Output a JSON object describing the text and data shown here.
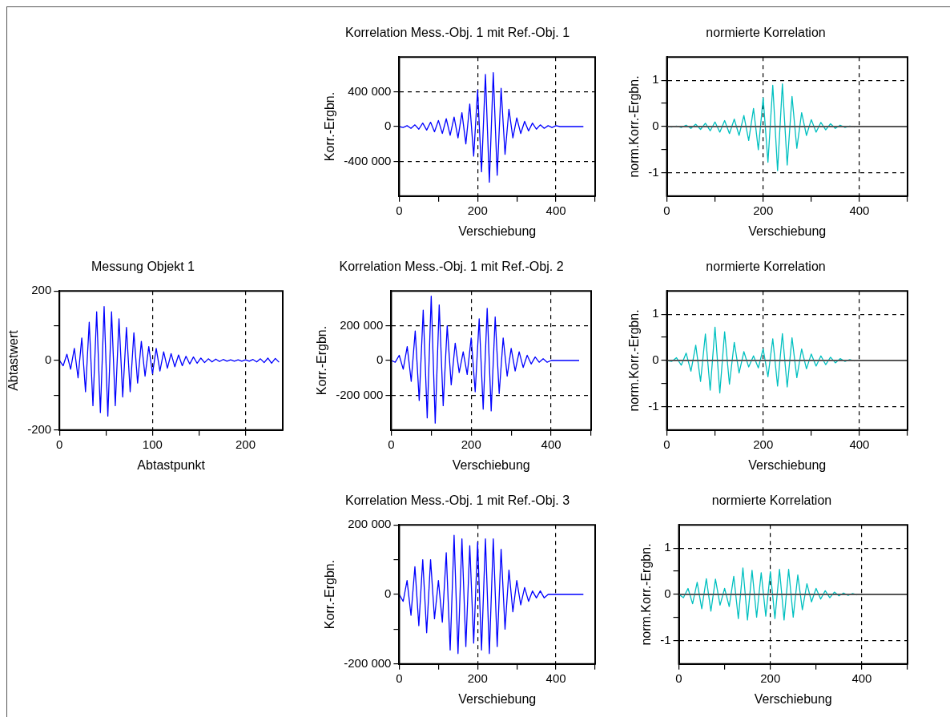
{
  "chart_data": [
    {
      "type": "line",
      "title": "Korrelation Mess.-Obj. 1 mit Ref.-Obj. 1",
      "xlabel": "Verschiebung",
      "ylabel": "Korr.-Ergbn.",
      "marker": "none",
      "grid": true,
      "xlim": [
        0,
        500
      ],
      "xticks": [
        0,
        {
          "value": 100,
          "label": null
        },
        200,
        {
          "value": 300,
          "label": null
        },
        400,
        {
          "value": 500,
          "label": null
        }
      ],
      "ylim": [
        -800000,
        800000
      ],
      "yticks": [
        {
          "value": -400000,
          "label": "-400 000"
        },
        0,
        {
          "value": 400000,
          "label": "400 000"
        }
      ],
      "x": [
        0,
        10,
        20,
        30,
        40,
        50,
        60,
        70,
        80,
        90,
        100,
        110,
        120,
        130,
        140,
        150,
        160,
        170,
        180,
        190,
        200,
        210,
        220,
        230,
        240,
        250,
        260,
        270,
        280,
        290,
        300,
        310,
        320,
        330,
        340,
        350,
        360,
        370,
        380,
        390,
        400,
        410,
        420,
        430,
        440,
        450,
        460,
        470
      ],
      "series": [
        {
          "color": "#0000ff",
          "values": [
            0,
            -10000,
            10000,
            -20000,
            20000,
            -30000,
            40000,
            -40000,
            50000,
            -60000,
            70000,
            -80000,
            90000,
            -100000,
            110000,
            -130000,
            160000,
            -200000,
            260000,
            -340000,
            420000,
            -520000,
            600000,
            -640000,
            620000,
            -560000,
            440000,
            -320000,
            200000,
            -130000,
            100000,
            -80000,
            60000,
            -50000,
            40000,
            -30000,
            20000,
            -20000,
            10000,
            -10000,
            10000,
            0,
            0,
            0,
            0,
            0,
            0,
            0
          ]
        }
      ]
    },
    {
      "type": "line",
      "title": "normierte Korrelation",
      "xlabel": "Verschiebung",
      "ylabel": "norm.Korr.-Ergbn.",
      "marker": "none",
      "grid": true,
      "xlim": [
        0,
        500
      ],
      "xticks": [
        0,
        {
          "value": 100,
          "label": null
        },
        200,
        {
          "value": 300,
          "label": null
        },
        400,
        {
          "value": 500,
          "label": null
        }
      ],
      "ylim": [
        -1.5,
        1.5
      ],
      "yticks": [
        -1,
        {
          "value": -0.5,
          "label": null
        },
        0,
        {
          "value": 0.5,
          "label": null
        },
        1
      ],
      "x": [
        0,
        10,
        20,
        30,
        40,
        50,
        60,
        70,
        80,
        90,
        100,
        110,
        120,
        130,
        140,
        150,
        160,
        170,
        180,
        190,
        200,
        210,
        220,
        230,
        240,
        250,
        260,
        270,
        280,
        290,
        300,
        310,
        320,
        330,
        340,
        350,
        360,
        370,
        380,
        390
      ],
      "series": [
        {
          "color": "#00c0c0",
          "values": [
            0,
            -0.01,
            0.01,
            -0.02,
            0.03,
            -0.04,
            0.05,
            -0.06,
            0.07,
            -0.09,
            0.1,
            -0.12,
            0.13,
            -0.15,
            0.16,
            -0.19,
            0.24,
            -0.3,
            0.39,
            -0.5,
            0.62,
            -0.77,
            0.89,
            -0.95,
            0.92,
            -0.83,
            0.65,
            -0.47,
            0.3,
            -0.19,
            0.15,
            -0.12,
            0.09,
            -0.07,
            0.06,
            -0.04,
            0.03,
            -0.02,
            0.01,
            -0.01
          ]
        }
      ],
      "ref_lines": [
        {
          "axis": "y",
          "value": 0,
          "color": "#555555"
        }
      ]
    },
    {
      "type": "line",
      "title": "Messung Objekt 1",
      "xlabel": "Abtastpunkt",
      "ylabel": "Abtastwert",
      "marker": "none",
      "grid": "x",
      "xlim": [
        0,
        240
      ],
      "xticks": [
        0,
        {
          "value": 50,
          "label": null
        },
        100,
        {
          "value": 150,
          "label": null
        },
        200
      ],
      "ylim": [
        -200,
        200
      ],
      "yticks": [
        -200,
        {
          "value": -100,
          "label": null
        },
        0,
        {
          "value": 100,
          "label": null
        },
        200
      ],
      "x": [
        0,
        4,
        8,
        12,
        16,
        20,
        24,
        28,
        32,
        36,
        40,
        44,
        48,
        52,
        56,
        60,
        64,
        68,
        72,
        76,
        80,
        84,
        88,
        92,
        96,
        100,
        104,
        108,
        112,
        116,
        120,
        124,
        128,
        132,
        136,
        140,
        144,
        148,
        152,
        156,
        160,
        164,
        168,
        172,
        176,
        180,
        184,
        188,
        192,
        196,
        200,
        204,
        208,
        212,
        216,
        220,
        224,
        228,
        232,
        236
      ],
      "series": [
        {
          "color": "#0000ff",
          "values": [
            0,
            -15,
            18,
            -25,
            35,
            -50,
            65,
            -90,
            110,
            -130,
            140,
            -150,
            155,
            -160,
            140,
            -130,
            120,
            -105,
            95,
            -90,
            80,
            -65,
            55,
            -45,
            40,
            -38,
            35,
            -30,
            25,
            -22,
            20,
            -18,
            16,
            -15,
            12,
            -10,
            10,
            -8,
            7,
            -6,
            5,
            -4,
            4,
            -3,
            3,
            -2,
            2,
            -2,
            2,
            -2,
            2,
            -2,
            3,
            -4,
            5,
            -6,
            7,
            -8,
            6,
            -5
          ]
        }
      ]
    },
    {
      "type": "line",
      "title": "Korrelation Mess.-Obj. 1 mit Ref.-Obj. 2",
      "xlabel": "Verschiebung",
      "ylabel": "Korr.-Ergbn.",
      "marker": "none",
      "grid": true,
      "xlim": [
        0,
        500
      ],
      "xticks": [
        0,
        {
          "value": 100,
          "label": null
        },
        200,
        {
          "value": 300,
          "label": null
        },
        400,
        {
          "value": 500,
          "label": null
        }
      ],
      "ylim": [
        -400000,
        400000
      ],
      "yticks": [
        {
          "value": -200000,
          "label": "-200 000"
        },
        0,
        {
          "value": 200000,
          "label": "200 000"
        }
      ],
      "x": [
        0,
        10,
        20,
        30,
        40,
        50,
        60,
        70,
        80,
        90,
        100,
        110,
        120,
        130,
        140,
        150,
        160,
        170,
        180,
        190,
        200,
        210,
        220,
        230,
        240,
        250,
        260,
        270,
        280,
        290,
        300,
        310,
        320,
        330,
        340,
        350,
        360,
        370,
        380,
        390,
        400,
        410,
        420,
        430,
        440,
        450,
        460,
        470
      ],
      "series": [
        {
          "color": "#0000ff",
          "values": [
            0,
            -10000,
            30000,
            -50000,
            80000,
            -120000,
            170000,
            -230000,
            290000,
            -330000,
            370000,
            -360000,
            320000,
            -260000,
            200000,
            -140000,
            100000,
            -70000,
            50000,
            -80000,
            130000,
            -180000,
            240000,
            -280000,
            300000,
            -290000,
            250000,
            -190000,
            130000,
            -90000,
            70000,
            -60000,
            50000,
            -40000,
            30000,
            -20000,
            20000,
            -10000,
            10000,
            -10000,
            0,
            0,
            0,
            0,
            0,
            0,
            0,
            0
          ]
        }
      ]
    },
    {
      "type": "line",
      "title": "normierte Korrelation",
      "xlabel": "Verschiebung",
      "ylabel": "norm.Korr.-Ergbn.",
      "marker": "none",
      "grid": true,
      "xlim": [
        0,
        500
      ],
      "xticks": [
        0,
        {
          "value": 100,
          "label": null
        },
        200,
        {
          "value": 300,
          "label": null
        },
        400,
        {
          "value": 500,
          "label": null
        }
      ],
      "ylim": [
        -1.5,
        1.5
      ],
      "yticks": [
        -1,
        {
          "value": -0.5,
          "label": null
        },
        0,
        {
          "value": 0.5,
          "label": null
        },
        1
      ],
      "x": [
        0,
        10,
        20,
        30,
        40,
        50,
        60,
        70,
        80,
        90,
        100,
        110,
        120,
        130,
        140,
        150,
        160,
        170,
        180,
        190,
        200,
        210,
        220,
        230,
        240,
        250,
        260,
        270,
        280,
        290,
        300,
        310,
        320,
        330,
        340,
        350,
        360,
        370,
        380,
        390
      ],
      "series": [
        {
          "color": "#00c0c0",
          "values": [
            0,
            -0.02,
            0.06,
            -0.1,
            0.16,
            -0.23,
            0.33,
            -0.45,
            0.57,
            -0.64,
            0.72,
            -0.7,
            0.62,
            -0.51,
            0.39,
            -0.27,
            0.19,
            -0.14,
            0.1,
            -0.16,
            0.25,
            -0.35,
            0.47,
            -0.55,
            0.58,
            -0.57,
            0.49,
            -0.37,
            0.25,
            -0.18,
            0.14,
            -0.12,
            0.1,
            -0.09,
            0.07,
            -0.05,
            0.04,
            -0.02,
            0.02,
            -0.01
          ]
        }
      ],
      "ref_lines": [
        {
          "axis": "y",
          "value": 0,
          "color": "#555555"
        }
      ]
    },
    {
      "type": "line",
      "title": "Korrelation Mess.-Obj. 1 mit Ref.-Obj. 3",
      "xlabel": "Verschiebung",
      "ylabel": "Korr.-Ergbn.",
      "marker": "none",
      "grid": "x",
      "xlim": [
        0,
        500
      ],
      "xticks": [
        0,
        {
          "value": 100,
          "label": null
        },
        200,
        {
          "value": 300,
          "label": null
        },
        400,
        {
          "value": 500,
          "label": null
        }
      ],
      "ylim": [
        -200000,
        200000
      ],
      "yticks": [
        {
          "value": -200000,
          "label": "-200 000"
        },
        {
          "value": -100000,
          "label": null
        },
        0,
        {
          "value": 100000,
          "label": null
        },
        {
          "value": 200000,
          "label": "200 000"
        }
      ],
      "x": [
        0,
        10,
        20,
        30,
        40,
        50,
        60,
        70,
        80,
        90,
        100,
        110,
        120,
        130,
        140,
        150,
        160,
        170,
        180,
        190,
        200,
        210,
        220,
        230,
        240,
        250,
        260,
        270,
        280,
        290,
        300,
        310,
        320,
        330,
        340,
        350,
        360,
        370,
        380,
        390,
        400,
        410,
        420,
        430,
        440,
        450,
        460,
        470
      ],
      "series": [
        {
          "color": "#0000ff",
          "values": [
            0,
            -20000,
            40000,
            -60000,
            80000,
            -90000,
            100000,
            -110000,
            100000,
            -70000,
            40000,
            -80000,
            120000,
            -160000,
            170000,
            -170000,
            160000,
            -150000,
            140000,
            -140000,
            150000,
            -160000,
            160000,
            -170000,
            160000,
            -150000,
            130000,
            -100000,
            70000,
            -50000,
            40000,
            -30000,
            20000,
            -20000,
            10000,
            -10000,
            10000,
            -10000,
            0,
            0,
            0,
            0,
            0,
            0,
            0,
            0,
            0,
            0
          ]
        }
      ]
    },
    {
      "type": "line",
      "title": "normierte Korrelation",
      "xlabel": "Verschiebung",
      "ylabel": "norm.Korr.-Ergbn.",
      "marker": "none",
      "grid": true,
      "xlim": [
        0,
        500
      ],
      "xticks": [
        0,
        {
          "value": 100,
          "label": null
        },
        200,
        {
          "value": 300,
          "label": null
        },
        400,
        {
          "value": 500,
          "label": null
        }
      ],
      "ylim": [
        -1.5,
        1.5
      ],
      "yticks": [
        -1,
        {
          "value": -0.5,
          "label": null
        },
        0,
        {
          "value": 0.5,
          "label": null
        },
        1
      ],
      "x": [
        0,
        10,
        20,
        30,
        40,
        50,
        60,
        70,
        80,
        90,
        100,
        110,
        120,
        130,
        140,
        150,
        160,
        170,
        180,
        190,
        200,
        210,
        220,
        230,
        240,
        250,
        260,
        270,
        280,
        290,
        300,
        310,
        320,
        330,
        340,
        350,
        360,
        370,
        380,
        390
      ],
      "series": [
        {
          "color": "#00c0c0",
          "values": [
            0,
            -0.07,
            0.13,
            -0.2,
            0.26,
            -0.31,
            0.34,
            -0.36,
            0.33,
            -0.23,
            0.13,
            -0.26,
            0.39,
            -0.52,
            0.57,
            -0.55,
            0.52,
            -0.49,
            0.47,
            -0.47,
            0.49,
            -0.52,
            0.54,
            -0.55,
            0.54,
            -0.49,
            0.42,
            -0.33,
            0.23,
            -0.16,
            0.13,
            -0.1,
            0.08,
            -0.07,
            0.05,
            -0.03,
            0.03,
            -0.02,
            0.02,
            -0.01
          ]
        }
      ],
      "ref_lines": [
        {
          "axis": "y",
          "value": 0,
          "color": "#555555"
        }
      ]
    }
  ]
}
